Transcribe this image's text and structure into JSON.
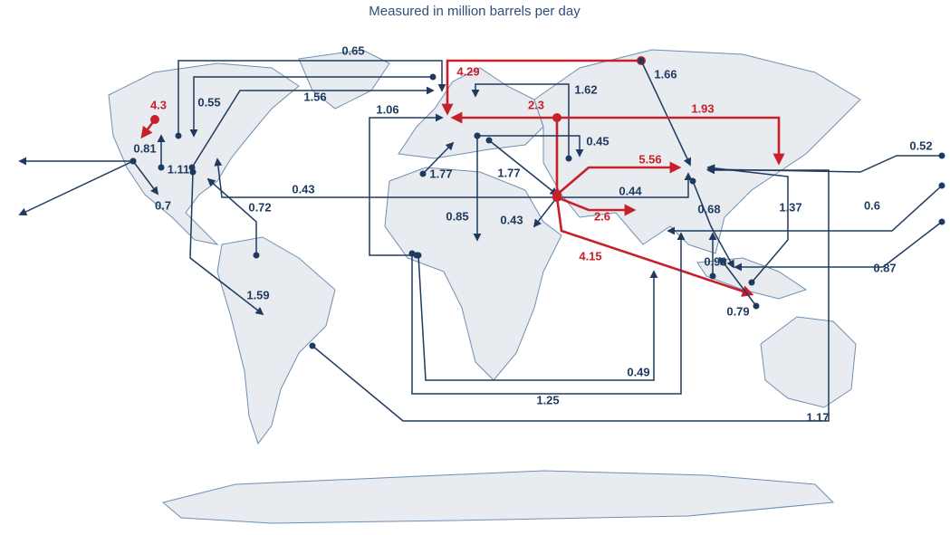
{
  "subtitle": "Measured in million barrels per day",
  "flows": [
    {
      "value": 0.65,
      "color": "#1e3a5f"
    },
    {
      "value": 4.29,
      "color": "#c8202b"
    },
    {
      "value": 1.66,
      "color": "#1e3a5f"
    },
    {
      "value": 0.55,
      "color": "#1e3a5f"
    },
    {
      "value": 1.56,
      "color": "#1e3a5f"
    },
    {
      "value": 1.62,
      "color": "#1e3a5f"
    },
    {
      "value": 1.06,
      "color": "#1e3a5f"
    },
    {
      "value": 2.3,
      "color": "#c8202b"
    },
    {
      "value": 1.93,
      "color": "#c8202b"
    },
    {
      "value": 4.3,
      "color": "#c8202b"
    },
    {
      "value": 0.81,
      "color": "#1e3a5f"
    },
    {
      "value": 1.11,
      "color": "#1e3a5f"
    },
    {
      "value": 0.7,
      "color": "#1e3a5f"
    },
    {
      "value": 0.45,
      "color": "#1e3a5f"
    },
    {
      "value": 1.77,
      "color": "#1e3a5f"
    },
    {
      "value": 1.77,
      "color": "#1e3a5f"
    },
    {
      "value": 5.56,
      "color": "#c8202b"
    },
    {
      "value": 0.43,
      "color": "#1e3a5f"
    },
    {
      "value": 0.44,
      "color": "#1e3a5f"
    },
    {
      "value": 2.6,
      "color": "#c8202b"
    },
    {
      "value": 0.85,
      "color": "#1e3a5f"
    },
    {
      "value": 0.43,
      "color": "#1e3a5f"
    },
    {
      "value": 0.72,
      "color": "#1e3a5f"
    },
    {
      "value": 4.15,
      "color": "#c8202b"
    },
    {
      "value": 0.68,
      "color": "#1e3a5f"
    },
    {
      "value": 1.37,
      "color": "#1e3a5f"
    },
    {
      "value": 0.52,
      "color": "#1e3a5f"
    },
    {
      "value": 0.6,
      "color": "#1e3a5f"
    },
    {
      "value": 0.87,
      "color": "#1e3a5f"
    },
    {
      "value": 0.93,
      "color": "#1e3a5f"
    },
    {
      "value": 0.79,
      "color": "#1e3a5f"
    },
    {
      "value": 1.59,
      "color": "#1e3a5f"
    },
    {
      "value": 0.49,
      "color": "#1e3a5f"
    },
    {
      "value": 1.25,
      "color": "#1e3a5f"
    },
    {
      "value": 1.17,
      "color": "#1e3a5f"
    }
  ]
}
